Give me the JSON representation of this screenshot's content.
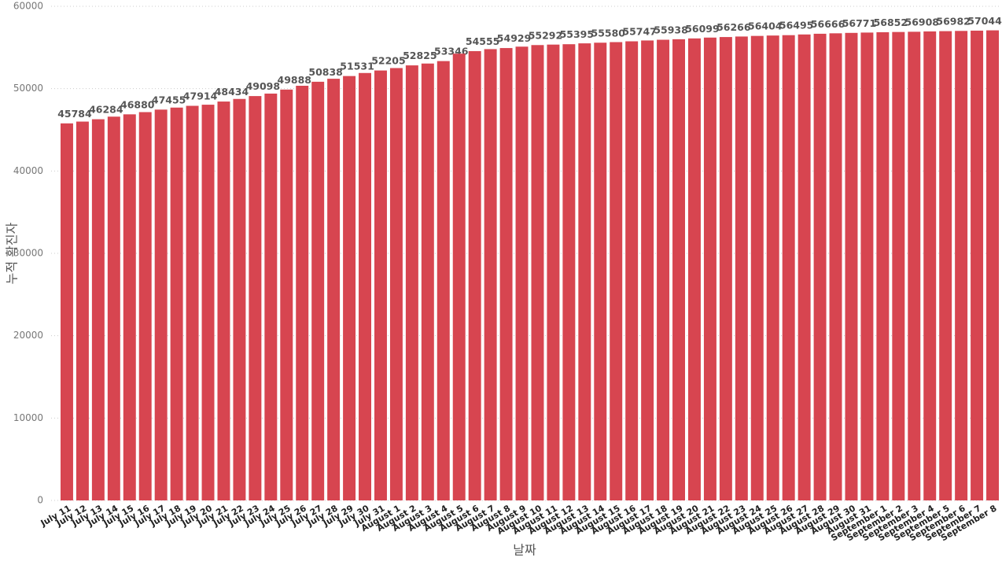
{
  "chart_data": {
    "type": "bar",
    "x_label": "날짜",
    "y_label": "누적 확진자",
    "color": "#d74550",
    "categories": [
      "July 11",
      "July 12",
      "July 13",
      "July 14",
      "July 15",
      "July 16",
      "July 17",
      "July 18",
      "July 19",
      "July 20",
      "July 21",
      "July 22",
      "July 23",
      "July 24",
      "July 25",
      "July 26",
      "July 27",
      "July 28",
      "July 29",
      "July 30",
      "July 31",
      "August 1",
      "August 2",
      "August 3",
      "August 4",
      "August 5",
      "August 6",
      "August 7",
      "August 8",
      "August 9",
      "August 10",
      "August 11",
      "August 12",
      "August 13",
      "August 14",
      "August 15",
      "August 16",
      "August 17",
      "August 18",
      "August 19",
      "August 20",
      "August 21",
      "August 22",
      "August 23",
      "August 24",
      "August 25",
      "August 26",
      "August 27",
      "August 28",
      "August 29",
      "August 30",
      "August 31",
      "September 1",
      "September 2",
      "September 3",
      "September 4",
      "September 5",
      "September 6",
      "September 7",
      "September 8"
    ],
    "values": [
      45784,
      46000,
      46284,
      46600,
      46880,
      47150,
      47455,
      47700,
      47914,
      48050,
      48434,
      48750,
      49098,
      49400,
      49888,
      50350,
      50838,
      51200,
      51531,
      51900,
      52205,
      52500,
      52825,
      53050,
      53346,
      54250,
      54555,
      54800,
      54929,
      55100,
      55292,
      55350,
      55395,
      55500,
      55580,
      55650,
      55747,
      55850,
      55938,
      56000,
      56099,
      56200,
      56266,
      56330,
      56404,
      56450,
      56495,
      56580,
      56666,
      56720,
      56771,
      56810,
      56852,
      56880,
      56908,
      56950,
      56982,
      57010,
      57044,
      57080
    ],
    "value_labels": [
      "45784",
      null,
      "46284",
      null,
      "46880",
      null,
      "47455",
      null,
      "47914",
      null,
      "48434",
      null,
      "49098",
      null,
      "49888",
      null,
      "50838",
      null,
      "51531",
      null,
      "52205",
      null,
      "52825",
      null,
      "53346",
      null,
      "54555",
      null,
      "54929",
      null,
      "55292",
      null,
      "55395",
      null,
      "55580",
      null,
      "55747",
      null,
      "55938",
      null,
      "56099",
      null,
      "56266",
      null,
      "56404",
      null,
      "56495",
      null,
      "56666",
      null,
      "56771",
      null,
      "56852",
      null,
      "56908",
      null,
      "56982",
      null,
      "57044",
      null
    ],
    "ylim": [
      0,
      60000
    ],
    "yticks": [
      0,
      10000,
      20000,
      30000,
      40000,
      50000,
      60000
    ],
    "grid": true
  }
}
